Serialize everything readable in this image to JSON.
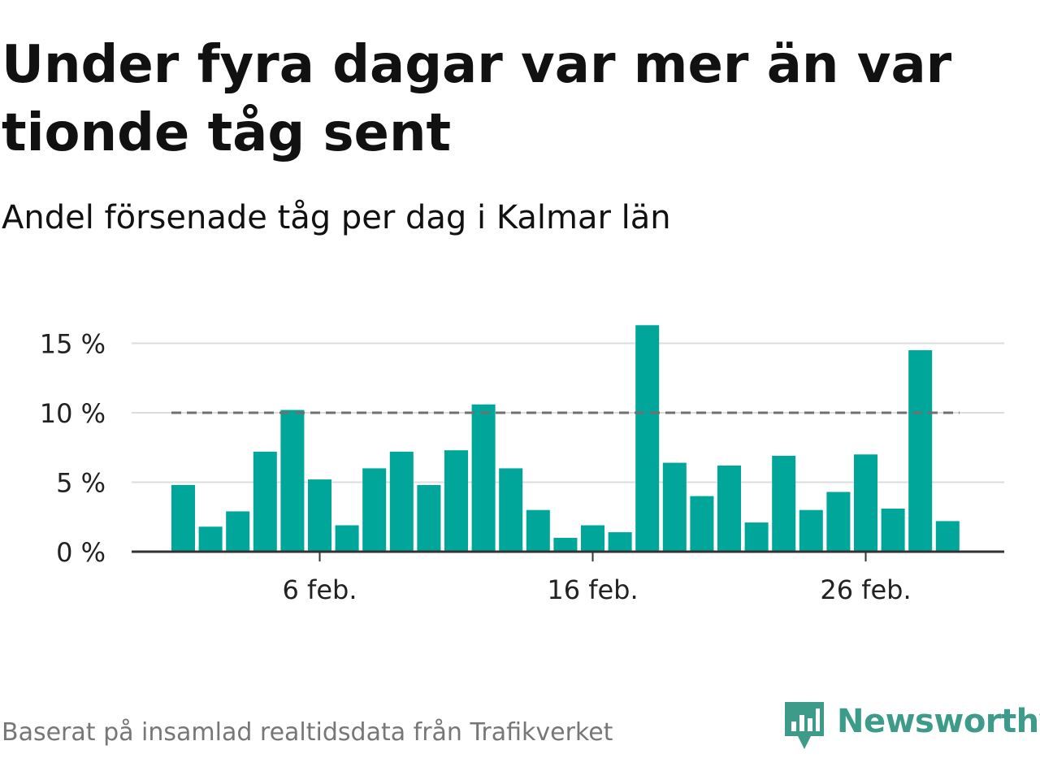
{
  "title": "Under fyra dagar var mer än var tionde tåg sent",
  "subtitle": "Andel försenade tåg per dag i Kalmar län",
  "source": "Baserat på insamlad realtidsdata från Trafikverket",
  "brand": {
    "name": "Newsworthy",
    "icon": "newsworthy-logo-icon",
    "color": "#3d9b8a"
  },
  "colors": {
    "bar": "#00a69a",
    "reference_line": "#707070",
    "grid": "#dddddd",
    "axis": "#333333"
  },
  "chart_data": {
    "type": "bar",
    "title": "Under fyra dagar var mer än var tionde tåg sent",
    "subtitle": "Andel försenade tåg per dag i Kalmar län",
    "xlabel": "",
    "ylabel": "",
    "unit": "%",
    "ylim": [
      0,
      16.5
    ],
    "y_ticks": [
      0,
      5,
      10,
      15
    ],
    "y_tick_labels": [
      "0 %",
      "5 %",
      "10 %",
      "15 %"
    ],
    "x_ticks": [
      {
        "day": 6,
        "label": "6 feb."
      },
      {
        "day": 16,
        "label": "16 feb."
      },
      {
        "day": 26,
        "label": "26 feb."
      }
    ],
    "reference_line": 10,
    "grid": true,
    "categories": [
      "2024-02-01",
      "2024-02-02",
      "2024-02-03",
      "2024-02-04",
      "2024-02-05",
      "2024-02-06",
      "2024-02-07",
      "2024-02-08",
      "2024-02-09",
      "2024-02-10",
      "2024-02-11",
      "2024-02-12",
      "2024-02-13",
      "2024-02-14",
      "2024-02-15",
      "2024-02-16",
      "2024-02-17",
      "2024-02-18",
      "2024-02-19",
      "2024-02-20",
      "2024-02-21",
      "2024-02-22",
      "2024-02-23",
      "2024-02-24",
      "2024-02-25",
      "2024-02-26",
      "2024-02-27",
      "2024-02-28",
      "2024-02-29"
    ],
    "values": [
      4.8,
      1.8,
      2.9,
      7.2,
      10.2,
      5.2,
      1.9,
      6.0,
      7.2,
      4.8,
      7.3,
      10.6,
      6.0,
      3.0,
      1.0,
      1.9,
      1.4,
      16.3,
      6.4,
      4.0,
      6.2,
      2.1,
      6.9,
      3.0,
      4.3,
      7.0,
      3.1,
      14.5,
      2.2
    ]
  }
}
